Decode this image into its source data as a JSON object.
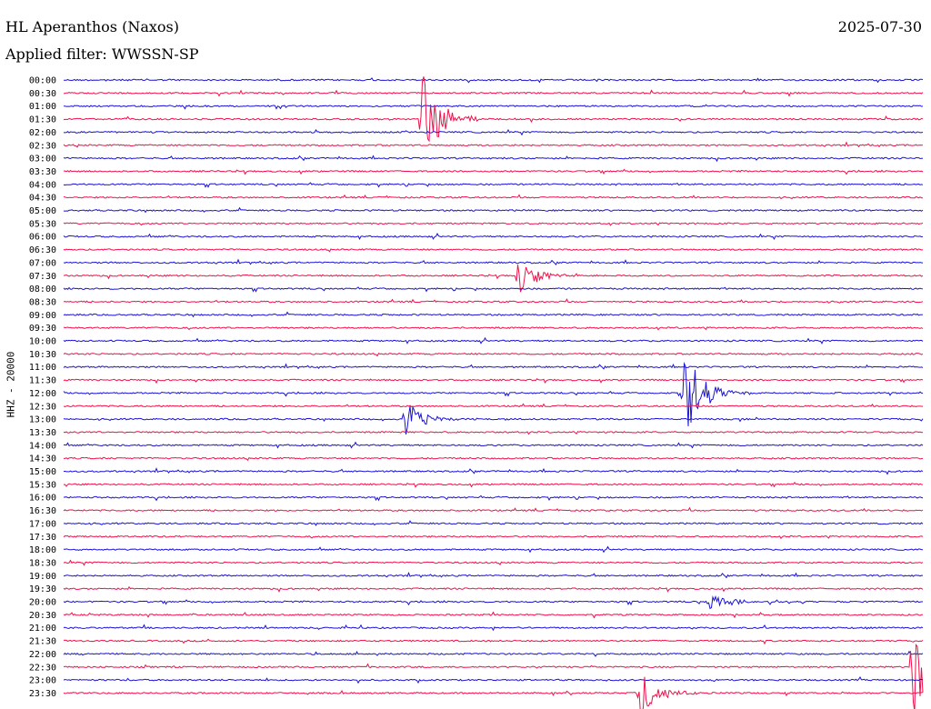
{
  "header": {
    "station": "HL Aperanthos (Naxos)",
    "filter": "Applied filter: WWSSN-SP",
    "date": "2025-07-30"
  },
  "colors": {
    "trace_a": "#1a12d6",
    "trace_b": "#f0104a"
  },
  "chart_data": {
    "type": "line",
    "title": "HL Aperanthos (Naxos)",
    "subtitle": "Applied filter: WWSSN-SP",
    "ylabel": "HHZ - 20000",
    "xlabel": "",
    "grid": false,
    "legend": "none",
    "rows": [
      "00:00",
      "00:30",
      "01:00",
      "01:30",
      "02:00",
      "02:30",
      "03:00",
      "03:30",
      "04:00",
      "04:30",
      "05:00",
      "05:30",
      "06:00",
      "06:30",
      "07:00",
      "07:30",
      "08:00",
      "08:30",
      "09:00",
      "09:30",
      "10:00",
      "10:30",
      "11:00",
      "11:30",
      "12:00",
      "12:30",
      "13:00",
      "13:30",
      "14:00",
      "14:30",
      "15:00",
      "15:30",
      "16:00",
      "16:30",
      "17:00",
      "17:30",
      "18:00",
      "18:30",
      "19:00",
      "19:30",
      "20:00",
      "20:30",
      "21:00",
      "21:30",
      "22:00",
      "22:30",
      "23:00",
      "23:30"
    ],
    "x_range_minutes": [
      0,
      30
    ],
    "events": [
      {
        "row": "01:30",
        "minute": 12.5,
        "amplitude": 1.0
      },
      {
        "row": "07:30",
        "minute": 15.8,
        "amplitude": 0.4
      },
      {
        "row": "12:00",
        "minute": 21.6,
        "amplitude": 1.0
      },
      {
        "row": "13:00",
        "minute": 11.9,
        "amplitude": 0.35
      },
      {
        "row": "20:00",
        "minute": 22.5,
        "amplitude": 0.2
      },
      {
        "row": "22:30",
        "minute": 29.6,
        "amplitude": 1.0
      },
      {
        "row": "23:30",
        "minute": 20.1,
        "amplitude": 0.45
      }
    ]
  }
}
